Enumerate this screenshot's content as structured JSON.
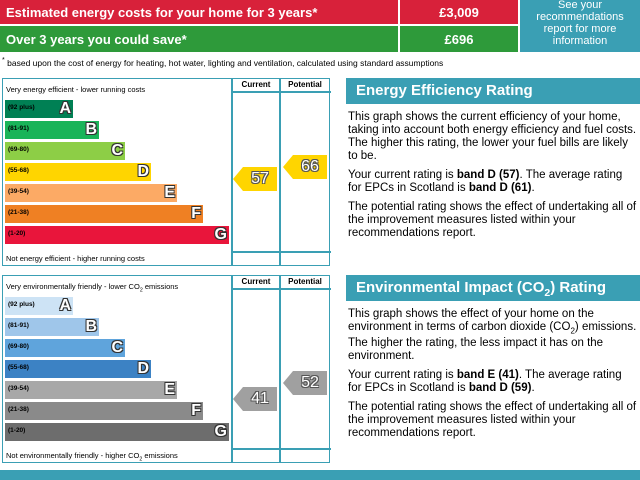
{
  "header": {
    "costs_label": "Estimated energy costs for your home for 3 years*",
    "costs_value": "£3,009",
    "save_label": "Over 3 years you could save*",
    "save_value": "£696",
    "recommendations": "See your recommendations report for more information",
    "footnote_mark": "*",
    "footnote": "based upon the cost of energy for heating, hot water, lighting and ventilation, calculated using standard assumptions"
  },
  "energy_chart": {
    "top_label": "Very energy efficient - lower running costs",
    "bottom_label": "Not energy efficient - higher running costs",
    "current_header": "Current",
    "potential_header": "Potential",
    "bands": [
      {
        "range": "(92 plus)",
        "letter": "A"
      },
      {
        "range": "(81-91)",
        "letter": "B"
      },
      {
        "range": "(69-80)",
        "letter": "C"
      },
      {
        "range": "(55-68)",
        "letter": "D"
      },
      {
        "range": "(39-54)",
        "letter": "E"
      },
      {
        "range": "(21-38)",
        "letter": "F"
      },
      {
        "range": "(1-20)",
        "letter": "G"
      }
    ],
    "current": 57,
    "potential": 66
  },
  "energy_text": {
    "title": "Energy Efficiency Rating",
    "p1": "This graph shows the current efficiency of your home, taking into account both energy efficiency and fuel costs. The higher this rating, the lower your fuel bills are likely to be.",
    "p2": [
      "Your current rating is ",
      "band D (57)",
      ". The average rating for EPCs in Scotland is ",
      "band D (61)",
      "."
    ],
    "p3": "The potential rating shows the effect of undertaking all of the improvement measures listed within your recommendations report."
  },
  "environment_chart": {
    "top_label": [
      "Very environmentally friendly - lower CO",
      "2",
      " emissions"
    ],
    "bottom_label": [
      "Not environmentally friendly - higher CO",
      "2",
      " emissions"
    ],
    "current_header": "Current",
    "potential_header": "Potential",
    "bands": [
      {
        "range": "(92 plus)",
        "letter": "A"
      },
      {
        "range": "(81-91)",
        "letter": "B"
      },
      {
        "range": "(69-80)",
        "letter": "C"
      },
      {
        "range": "(55-68)",
        "letter": "D"
      },
      {
        "range": "(39-54)",
        "letter": "E"
      },
      {
        "range": "(21-38)",
        "letter": "F"
      },
      {
        "range": "(1-20)",
        "letter": "G"
      }
    ],
    "current": 41,
    "potential": 52
  },
  "environment_text": {
    "title": [
      "Environmental Impact (CO",
      "2",
      ") Rating"
    ],
    "p1": [
      "This graph shows the effect of your home on the environment in terms of carbon dioxide (CO",
      "2",
      ") emissions. The higher the rating, the less impact it has on the environment."
    ],
    "p2": [
      "Your current rating is ",
      "band E (41)",
      ". The average rating for EPCs in Scotland is ",
      "band D (59)",
      "."
    ],
    "p3": "The potential rating shows the effect of undertaking all of the improvement measures listed within your recommendations report."
  }
}
